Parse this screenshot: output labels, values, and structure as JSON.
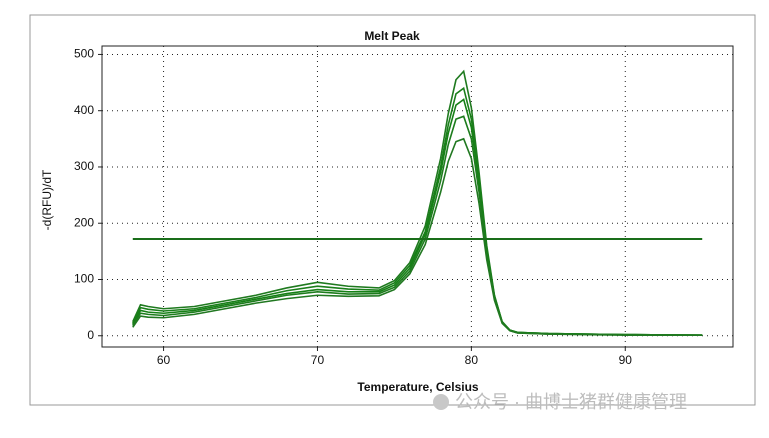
{
  "chart_data": {
    "type": "line",
    "title": "Melt Peak",
    "x_label": "Temperature, Celsius",
    "y_label": "-d(RFU)/dT",
    "x": [
      58,
      58.5,
      59,
      60,
      62,
      64,
      66,
      68,
      70,
      72,
      74,
      75,
      76,
      77,
      78,
      78.5,
      79,
      79.5,
      80,
      80.5,
      81,
      81.5,
      82,
      82.5,
      83,
      85,
      90,
      95
    ],
    "series": [
      {
        "color": "#1f7a1f",
        "values": [
          25,
          55,
          52,
          48,
          52,
          62,
          72,
          85,
          95,
          88,
          85,
          98,
          130,
          195,
          315,
          395,
          455,
          470,
          405,
          290,
          160,
          72,
          25,
          10,
          6,
          4,
          2,
          1
        ]
      },
      {
        "color": "#1a7f1a",
        "values": [
          22,
          50,
          47,
          44,
          48,
          58,
          68,
          80,
          88,
          83,
          81,
          94,
          125,
          185,
          300,
          375,
          430,
          440,
          385,
          280,
          155,
          70,
          24,
          10,
          6,
          4,
          2,
          1
        ]
      },
      {
        "color": "#168016",
        "values": [
          20,
          45,
          42,
          40,
          45,
          55,
          65,
          75,
          82,
          78,
          78,
          90,
          120,
          180,
          290,
          360,
          410,
          420,
          370,
          270,
          150,
          70,
          25,
          10,
          6,
          4,
          2,
          1
        ]
      },
      {
        "color": "#1d7c1d",
        "values": [
          18,
          40,
          38,
          36,
          42,
          52,
          62,
          72,
          78,
          74,
          75,
          86,
          115,
          172,
          275,
          340,
          385,
          390,
          350,
          255,
          145,
          68,
          24,
          9,
          5,
          3,
          2,
          1
        ]
      },
      {
        "color": "#217821",
        "values": [
          15,
          35,
          33,
          32,
          38,
          48,
          58,
          66,
          72,
          70,
          71,
          82,
          110,
          162,
          255,
          310,
          345,
          350,
          315,
          235,
          135,
          63,
          22,
          9,
          5,
          3,
          1,
          1
        ]
      }
    ],
    "threshold": 172,
    "threshold_color": "#1a6e1a",
    "xlim": [
      56,
      97
    ],
    "xticks": [
      60,
      70,
      80,
      90
    ],
    "ylim": [
      -20,
      515
    ],
    "yticks": [
      0,
      100,
      200,
      300,
      400,
      500
    ],
    "grid": true
  },
  "watermark": "公众号 · 曲博士猪群健康管理"
}
